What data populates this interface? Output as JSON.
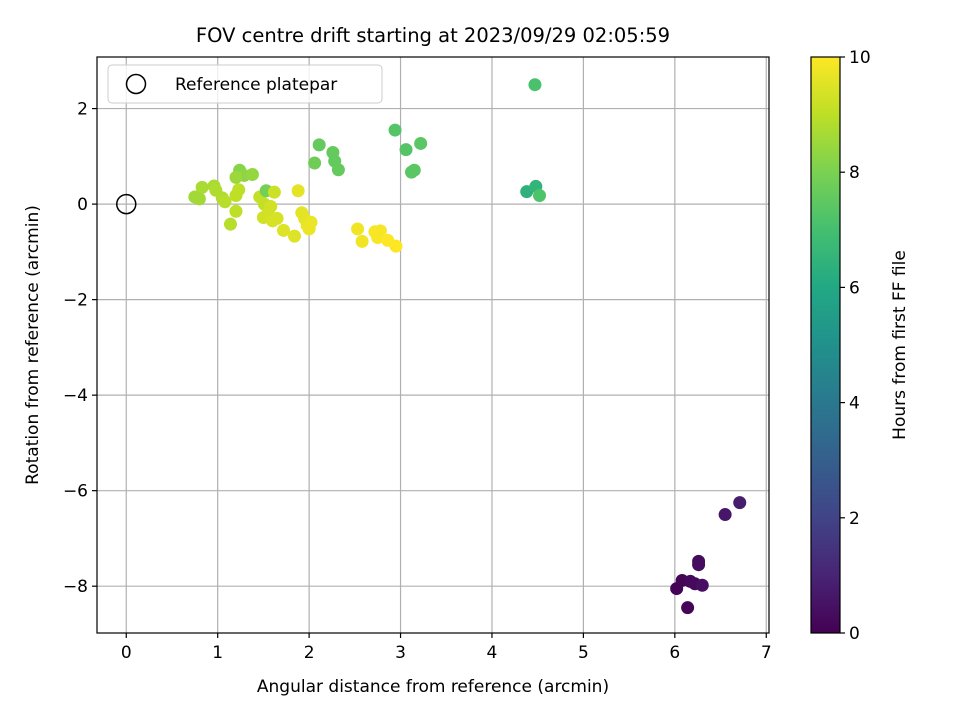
{
  "chart_data": {
    "type": "scatter",
    "title": "FOV centre drift starting at 2023/09/29 02:05:59",
    "xlabel": "Angular distance from reference (arcmin)",
    "ylabel": "Rotation from reference (arcmin)",
    "xlim": [
      -0.32,
      7.03
    ],
    "ylim": [
      -8.98,
      3.08
    ],
    "xticks": [
      0,
      1,
      2,
      3,
      4,
      5,
      6,
      7
    ],
    "yticks": [
      -8,
      -6,
      -4,
      -2,
      0,
      2
    ],
    "grid": true,
    "legend": {
      "position": "upper-left",
      "entries": [
        "Reference platepar"
      ]
    },
    "reference_point": {
      "x": 0,
      "y": 0
    },
    "colorbar": {
      "label": "Hours from first FF file",
      "colormap": "viridis",
      "range": [
        0,
        10
      ],
      "ticks": [
        0,
        2,
        4,
        6,
        8,
        10
      ]
    },
    "points": [
      {
        "x": 6.02,
        "y": -8.05,
        "h": 0.05
      },
      {
        "x": 6.08,
        "y": -7.88,
        "h": 0.1
      },
      {
        "x": 6.14,
        "y": -8.45,
        "h": 0.15
      },
      {
        "x": 6.17,
        "y": -7.9,
        "h": 0.2
      },
      {
        "x": 6.22,
        "y": -7.95,
        "h": 0.25
      },
      {
        "x": 6.26,
        "y": -7.48,
        "h": 0.3
      },
      {
        "x": 6.26,
        "y": -7.55,
        "h": 0.35
      },
      {
        "x": 6.3,
        "y": -7.98,
        "h": 0.4
      },
      {
        "x": 6.55,
        "y": -6.5,
        "h": 0.6
      },
      {
        "x": 6.71,
        "y": -6.25,
        "h": 0.8
      },
      {
        "x": 4.38,
        "y": 0.26,
        "h": 6.4
      },
      {
        "x": 4.48,
        "y": 0.37,
        "h": 6.5
      },
      {
        "x": 4.47,
        "y": 2.5,
        "h": 7.1
      },
      {
        "x": 4.52,
        "y": 0.18,
        "h": 7.2
      },
      {
        "x": 2.94,
        "y": 1.55,
        "h": 7.3
      },
      {
        "x": 3.06,
        "y": 1.14,
        "h": 7.3
      },
      {
        "x": 3.12,
        "y": 0.67,
        "h": 7.4
      },
      {
        "x": 3.15,
        "y": 0.71,
        "h": 7.4
      },
      {
        "x": 3.22,
        "y": 1.27,
        "h": 7.4
      },
      {
        "x": 2.11,
        "y": 1.24,
        "h": 7.6
      },
      {
        "x": 2.06,
        "y": 0.86,
        "h": 7.8
      },
      {
        "x": 2.26,
        "y": 1.08,
        "h": 7.6
      },
      {
        "x": 2.28,
        "y": 0.9,
        "h": 7.6
      },
      {
        "x": 2.32,
        "y": 0.72,
        "h": 7.6
      },
      {
        "x": 1.24,
        "y": 0.71,
        "h": 8.2
      },
      {
        "x": 1.29,
        "y": 0.6,
        "h": 8.3
      },
      {
        "x": 1.38,
        "y": 0.62,
        "h": 8.4
      },
      {
        "x": 1.2,
        "y": 0.56,
        "h": 8.5
      },
      {
        "x": 0.75,
        "y": 0.15,
        "h": 8.6
      },
      {
        "x": 0.8,
        "y": 0.11,
        "h": 8.6
      },
      {
        "x": 0.83,
        "y": 0.35,
        "h": 8.7
      },
      {
        "x": 0.96,
        "y": 0.38,
        "h": 8.7
      },
      {
        "x": 0.98,
        "y": 0.29,
        "h": 8.8
      },
      {
        "x": 1.05,
        "y": 0.13,
        "h": 8.8
      },
      {
        "x": 1.08,
        "y": 0.05,
        "h": 8.9
      },
      {
        "x": 1.14,
        "y": -0.42,
        "h": 8.9
      },
      {
        "x": 1.2,
        "y": -0.15,
        "h": 9.0
      },
      {
        "x": 1.23,
        "y": 0.3,
        "h": 9.0
      },
      {
        "x": 1.2,
        "y": 0.18,
        "h": 9.0
      },
      {
        "x": 1.46,
        "y": 0.15,
        "h": 9.1
      },
      {
        "x": 1.51,
        "y": 0.0,
        "h": 9.1
      },
      {
        "x": 1.53,
        "y": 0.28,
        "h": 7.9
      },
      {
        "x": 1.62,
        "y": 0.25,
        "h": 9.2
      },
      {
        "x": 1.58,
        "y": -0.05,
        "h": 9.3
      },
      {
        "x": 1.55,
        "y": -0.2,
        "h": 9.3
      },
      {
        "x": 1.5,
        "y": -0.28,
        "h": 9.3
      },
      {
        "x": 1.6,
        "y": -0.35,
        "h": 9.4
      },
      {
        "x": 1.65,
        "y": -0.3,
        "h": 9.4
      },
      {
        "x": 1.72,
        "y": -0.55,
        "h": 9.5
      },
      {
        "x": 1.84,
        "y": -0.67,
        "h": 9.5
      },
      {
        "x": 1.88,
        "y": 0.28,
        "h": 9.6
      },
      {
        "x": 1.92,
        "y": -0.18,
        "h": 9.6
      },
      {
        "x": 1.95,
        "y": -0.3,
        "h": 9.6
      },
      {
        "x": 1.98,
        "y": -0.45,
        "h": 9.7
      },
      {
        "x": 2.0,
        "y": -0.52,
        "h": 9.7
      },
      {
        "x": 2.02,
        "y": -0.38,
        "h": 9.7
      },
      {
        "x": 2.53,
        "y": -0.52,
        "h": 9.8
      },
      {
        "x": 2.58,
        "y": -0.78,
        "h": 9.8
      },
      {
        "x": 2.72,
        "y": -0.58,
        "h": 9.9
      },
      {
        "x": 2.75,
        "y": -0.7,
        "h": 9.9
      },
      {
        "x": 2.78,
        "y": -0.56,
        "h": 9.9
      },
      {
        "x": 2.86,
        "y": -0.76,
        "h": 10.0
      },
      {
        "x": 2.95,
        "y": -0.88,
        "h": 10.0
      }
    ]
  }
}
